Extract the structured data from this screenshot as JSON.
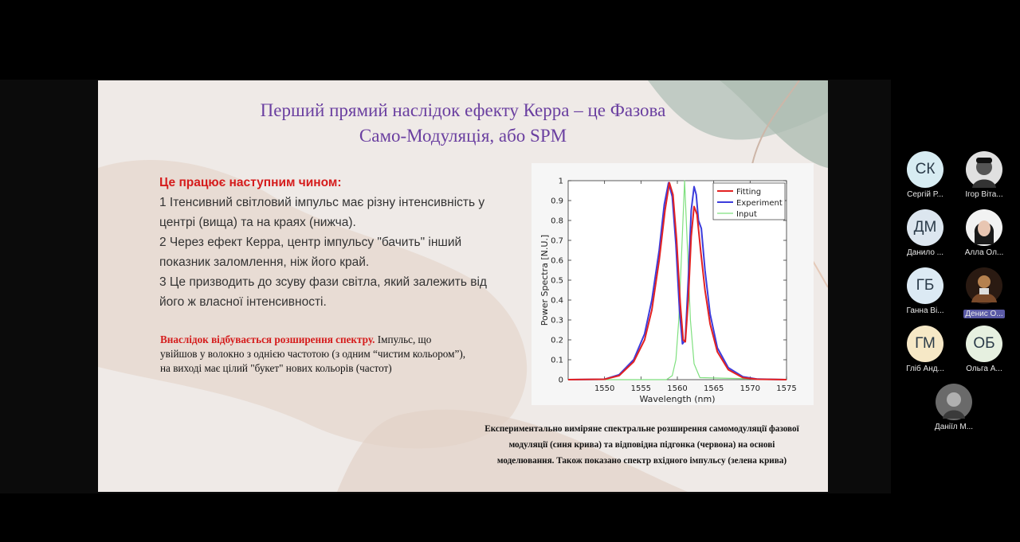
{
  "slide": {
    "title_line1": "Перший прямий наслідок ефекту Керра – це Фазова",
    "title_line2": "Само-Модуляція, або SPM",
    "steps_header": "Це працює наступним чином:",
    "step_lines": [
      "1 Ітенсивний світловий імпульс має різну інтенсивність у",
      "центрі (вища) та на краях (нижча).",
      "2 Через ефект Керра, центр імпульсу \"бачить\" інший",
      "показник заломлення, ніж його край.",
      "3 Це призводить до зсуву фази світла, який залежить від",
      "його ж власної інтенсивності."
    ],
    "consequence_red": "Внаслідок відбувається розширення спектру.",
    "consequence_rest1": " Імпульс, що",
    "consequence_line2": "увійшов у волокно з однією частотою (з одним “чистим кольором”),",
    "consequence_line3": "на виході має цілий \"букет\" нових кольорів (частот)",
    "caption_lines": [
      "Експериментально виміряне спектральне розширення самомодуляції фазової",
      "модуляції (синя крива) та відповідна підгонка (червона) на основі",
      "моделювання. Також показано спектр вхідного імпульсу (зелена крива)"
    ]
  },
  "chart_data": {
    "type": "line",
    "xlabel": "Wavelength (nm)",
    "ylabel": "Power Spectra [N.U.]",
    "xlim": [
      1545,
      1575
    ],
    "ylim": [
      0,
      1
    ],
    "xticks": [
      1550,
      1555,
      1560,
      1565,
      1570,
      1575
    ],
    "yticks": [
      0,
      0.1,
      0.2,
      0.3,
      0.4,
      0.5,
      0.6,
      0.7,
      0.8,
      0.9,
      1
    ],
    "ytick_labels": [
      "0",
      "0.1",
      "0.2",
      "0.3",
      "0.4",
      "0.5",
      "0.6",
      "0.7",
      "0.8",
      "0.9",
      "1"
    ],
    "legend_position": "top-right",
    "series": [
      {
        "name": "Fitting",
        "color": "#e32222",
        "x": [
          1545,
          1550,
          1552,
          1554,
          1555.5,
          1556.5,
          1557.5,
          1558.3,
          1558.9,
          1559.4,
          1559.9,
          1560.4,
          1560.8,
          1561.1,
          1561.5,
          1561.9,
          1562.3,
          1562.7,
          1563.2,
          1563.8,
          1564.5,
          1565.5,
          1567,
          1569,
          1571,
          1575
        ],
        "y": [
          0,
          0.002,
          0.02,
          0.09,
          0.2,
          0.35,
          0.6,
          0.85,
          0.99,
          0.93,
          0.7,
          0.38,
          0.2,
          0.19,
          0.4,
          0.72,
          0.87,
          0.83,
          0.65,
          0.45,
          0.28,
          0.14,
          0.05,
          0.01,
          0.002,
          0
        ]
      },
      {
        "name": "Experiment",
        "color": "#3c3cdc",
        "x": [
          1545,
          1550,
          1552,
          1554,
          1555.5,
          1556.5,
          1557.5,
          1558.2,
          1558.8,
          1559.3,
          1559.8,
          1560.3,
          1560.7,
          1561.1,
          1561.5,
          1561.9,
          1562.3,
          1562.6,
          1562.9,
          1563.3,
          1563.8,
          1564.5,
          1565.5,
          1567,
          1569,
          1571,
          1575
        ],
        "y": [
          0,
          0.002,
          0.025,
          0.1,
          0.23,
          0.4,
          0.65,
          0.88,
          0.99,
          0.92,
          0.68,
          0.35,
          0.18,
          0.2,
          0.5,
          0.85,
          0.97,
          0.93,
          0.8,
          0.76,
          0.55,
          0.33,
          0.16,
          0.06,
          0.015,
          0.003,
          0
        ]
      },
      {
        "name": "Input",
        "color": "#7fe07f",
        "x": [
          1545,
          1558.5,
          1559.3,
          1559.8,
          1560.2,
          1560.6,
          1561,
          1561.4,
          1561.8,
          1562.3,
          1563.1,
          1575
        ],
        "y": [
          0,
          0,
          0.02,
          0.1,
          0.3,
          0.65,
          1,
          0.65,
          0.3,
          0.08,
          0.01,
          0
        ]
      }
    ]
  },
  "participants": [
    {
      "initials": "СК",
      "name": "Сергій Р...",
      "color": "#d7ecf2"
    },
    {
      "initials": "",
      "name": "Ігор Віта...",
      "color": "#dcdcdc",
      "photo": true
    },
    {
      "initials": "ДМ",
      "name": "Данило ...",
      "color": "#dce6ef"
    },
    {
      "initials": "",
      "name": "Алла Ол...",
      "color": "#e8e8e8",
      "photo": true
    },
    {
      "initials": "ГБ",
      "name": "Ганна Ві...",
      "color": "#dceaf4"
    },
    {
      "initials": "",
      "name": "Денис О...",
      "color": "#553322",
      "photo": true,
      "active": true
    },
    {
      "initials": "ГМ",
      "name": "Гліб Анд...",
      "color": "#f6e8c6"
    },
    {
      "initials": "ОБ",
      "name": "Ольга А...",
      "color": "#e6f0e0"
    },
    {
      "initials": "",
      "name": "Даніїл М...",
      "color": "#777",
      "photo": true
    }
  ]
}
